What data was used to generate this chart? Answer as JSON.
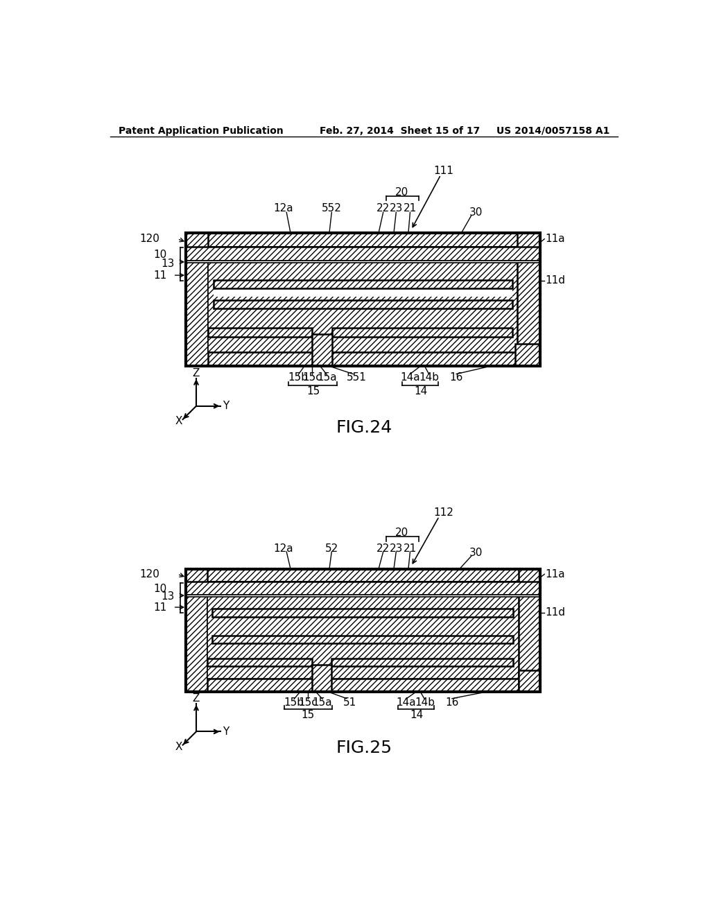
{
  "bg_color": "#ffffff",
  "header_left": "Patent Application Publication",
  "header_mid": "Feb. 27, 2014  Sheet 15 of 17",
  "header_right": "US 2014/0057158 A1",
  "fig24_title": "FIG.24",
  "fig25_title": "FIG.25",
  "line_color": "#000000",
  "fig_label_fontsize": 18,
  "annotation_fontsize": 11,
  "header_fontsize": 10
}
